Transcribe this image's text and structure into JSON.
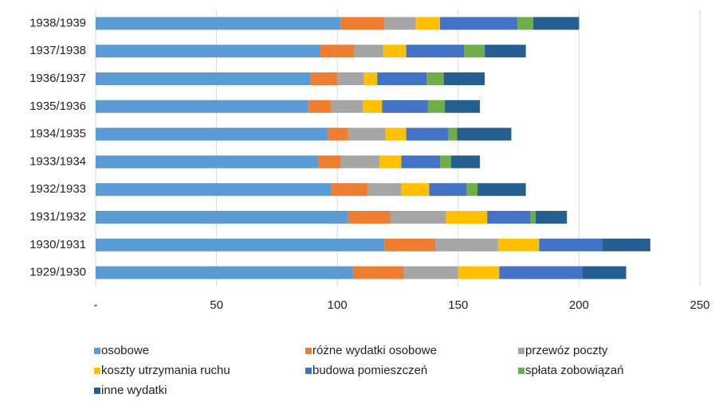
{
  "chart_data": {
    "type": "stacked-bar-horizontal",
    "categories": [
      "1938/1939",
      "1937/1938",
      "1936/1937",
      "1935/1936",
      "1934/1935",
      "1933/1934",
      "1932/1933",
      "1931/1932",
      "1930/1931",
      "1929/1930"
    ],
    "series": [
      {
        "name": "osobowe",
        "color": "#5b9bd5",
        "values": [
          101.5,
          93,
          89,
          88,
          96,
          92,
          97.5,
          104.5,
          119.5,
          106.5
        ]
      },
      {
        "name": "różne wydatki osobowe",
        "color": "#ed7d31",
        "values": [
          18,
          14,
          11,
          9.5,
          8.5,
          9.5,
          15,
          17.5,
          21,
          21
        ]
      },
      {
        "name": "przewóz poczty",
        "color": "#a5a5a5",
        "values": [
          13,
          12,
          11,
          13,
          15.5,
          16,
          14,
          23,
          26,
          22.5
        ]
      },
      {
        "name": "koszty utrzymania ruchu",
        "color": "#ffc000",
        "values": [
          10,
          9.5,
          5.5,
          8,
          8.5,
          9,
          11.5,
          17,
          17,
          17
        ]
      },
      {
        "name": "budowa pomieszczeń",
        "color": "#4472c4",
        "values": [
          32,
          24,
          20.5,
          19,
          17.5,
          16,
          15.5,
          18,
          26,
          34.5
        ]
      },
      {
        "name": "spłata zobowiązań",
        "color": "#70ad47",
        "values": [
          6.5,
          8.5,
          7,
          7,
          3.5,
          4.5,
          4.5,
          2,
          0,
          0
        ]
      },
      {
        "name": "inne wydatki",
        "color": "#255e91",
        "values": [
          19,
          17,
          17,
          14.5,
          22.5,
          12,
          20,
          13,
          20,
          18
        ]
      }
    ],
    "xlim": [
      0,
      250
    ],
    "xticks": [
      {
        "value": 0,
        "label": "-"
      },
      50,
      100,
      150,
      200,
      250
    ],
    "grid": true,
    "legend": "bottom"
  }
}
